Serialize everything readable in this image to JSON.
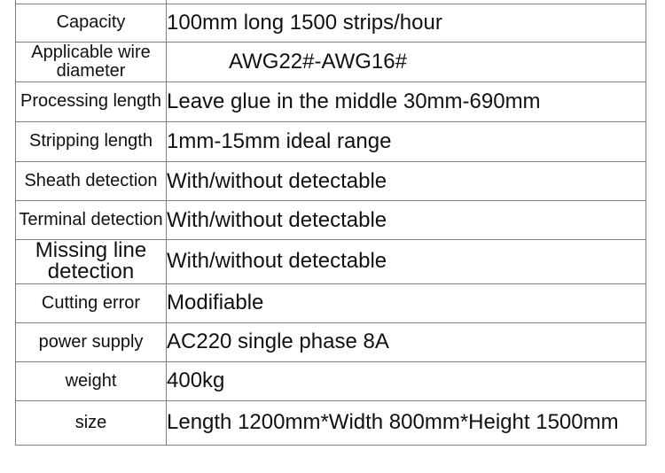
{
  "table": {
    "rows": [
      {
        "label": "Capacity",
        "value": "100mm long 1500 strips/hour"
      },
      {
        "label": "Applicable wire diameter",
        "value": "AWG22#-AWG16#"
      },
      {
        "label": "Processing length",
        "value": "Leave glue in the middle 30mm-690mm"
      },
      {
        "label": "Stripping length",
        "value": "1mm-15mm ideal range"
      },
      {
        "label": "Sheath detection",
        "value": "With/without detectable"
      },
      {
        "label": "Terminal detection",
        "value": "With/without detectable"
      },
      {
        "label": "Missing line detection",
        "value": "With/without detectable"
      },
      {
        "label": "Cutting error",
        "value": "Modifiable"
      },
      {
        "label": "power supply",
        "value": "AC220 single phase 8A"
      },
      {
        "label": "weight",
        "value": "400kg"
      },
      {
        "label": "size",
        "value": "Length 1200mm*Width 800mm*Height 1500mm"
      }
    ],
    "colors": {
      "border": "#808080",
      "text": "#111111",
      "background": "#ffffff"
    }
  }
}
